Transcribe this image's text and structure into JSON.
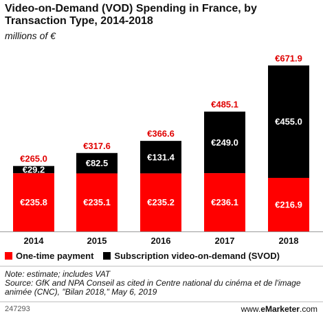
{
  "title": "Video-on-Demand (VOD) Spending in France, by Transaction Type, 2014-2018",
  "subtitle": "millions of €",
  "colors": {
    "one_time": "#ff0000",
    "svod": "#000000",
    "total_label": "#e00000"
  },
  "legend": {
    "one_time": "One-time payment",
    "svod": "Subscription video-on-demand (SVOD)"
  },
  "notes": {
    "note": "Note: estimate; includes VAT",
    "source": "Source: GfK and NPA Conseil as cited in Centre national du cinéma et de l'image animée (CNC), \"Bilan 2018,\" May 6, 2019"
  },
  "footer": {
    "id": "247293",
    "brand_prefix": "www.",
    "brand_e": "e",
    "brand_name": "Marketer",
    "brand_suffix": ".com"
  },
  "chart_data": {
    "type": "bar",
    "stacked": true,
    "categories": [
      "2014",
      "2015",
      "2016",
      "2017",
      "2018"
    ],
    "series": [
      {
        "name": "One-time payment",
        "values": [
          235.8,
          235.1,
          235.2,
          236.1,
          216.9
        ],
        "labels": [
          "€235.8",
          "€235.1",
          "€235.2",
          "€236.1",
          "€216.9"
        ]
      },
      {
        "name": "Subscription video-on-demand (SVOD)",
        "values": [
          29.2,
          82.5,
          131.4,
          249.0,
          455.0
        ],
        "labels": [
          "€29.2",
          "€82.5",
          "€131.4",
          "€249.0",
          "€455.0"
        ]
      }
    ],
    "totals": [
      "€265.0",
      "€317.6",
      "€366.6",
      "€485.1",
      "€671.9"
    ],
    "ylim": [
      0,
      700
    ],
    "unit": "millions of €"
  }
}
